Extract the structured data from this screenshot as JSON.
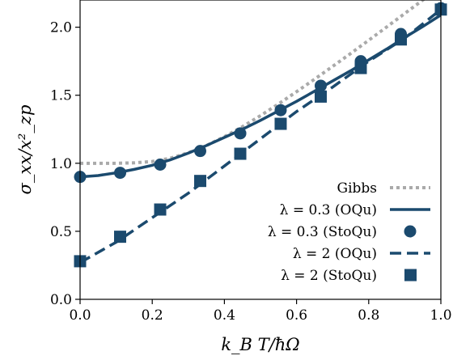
{
  "chart_data": {
    "type": "line",
    "xlabel": "k_B T/ħΩ",
    "ylabel": "σ_xx/x²_zp",
    "xlim": [
      0.0,
      1.0
    ],
    "ylim": [
      0.0,
      2.2
    ],
    "xticks": [
      "0.0",
      "0.2",
      "0.4",
      "0.6",
      "0.8",
      "1.0"
    ],
    "yticks": [
      "0.0",
      "0.5",
      "1.0",
      "1.5",
      "2.0"
    ],
    "grid": false,
    "legend_position": "bottom-right",
    "colors": {
      "dark_blue": "#1b4a6e",
      "gibbs_gray": "#aaaaaa"
    },
    "series": [
      {
        "name": "Gibbs",
        "style": "dotted",
        "color": "#aaaaaa",
        "x": [
          0.0,
          0.05,
          0.1,
          0.15,
          0.2,
          0.25,
          0.3,
          0.35,
          0.4,
          0.45,
          0.5,
          0.55,
          0.6,
          0.65,
          0.7,
          0.75,
          0.8,
          0.85,
          0.9,
          0.95,
          1.0
        ],
        "y": [
          1.0,
          1.0,
          1.0,
          1.003,
          1.013,
          1.037,
          1.077,
          1.13,
          1.195,
          1.269,
          1.35,
          1.436,
          1.526,
          1.618,
          1.712,
          1.807,
          1.904,
          2.002,
          2.101,
          2.2,
          2.3
        ]
      },
      {
        "name": "λ = 0.3 (OQu)",
        "style": "solid",
        "color": "#1b4a6e",
        "x": [
          0.0,
          0.05,
          0.1,
          0.15,
          0.2,
          0.25,
          0.3,
          0.35,
          0.4,
          0.45,
          0.5,
          0.55,
          0.6,
          0.65,
          0.7,
          0.75,
          0.8,
          0.85,
          0.9,
          0.95,
          1.0
        ],
        "y": [
          0.9,
          0.91,
          0.93,
          0.955,
          0.985,
          1.025,
          1.075,
          1.13,
          1.19,
          1.25,
          1.315,
          1.385,
          1.455,
          1.53,
          1.605,
          1.68,
          1.76,
          1.84,
          1.925,
          2.005,
          2.09
        ]
      },
      {
        "name": "λ = 0.3 (StoQu)",
        "style": "marker-circle",
        "color": "#1b4a6e",
        "x": [
          0.0,
          0.111,
          0.222,
          0.333,
          0.444,
          0.556,
          0.667,
          0.778,
          0.889,
          1.0
        ],
        "y": [
          0.9,
          0.93,
          0.99,
          1.09,
          1.22,
          1.39,
          1.57,
          1.75,
          1.95,
          2.14
        ]
      },
      {
        "name": "λ = 2 (OQu)",
        "style": "dashed",
        "color": "#1b4a6e",
        "x": [
          0.0,
          0.1,
          0.2,
          0.3,
          0.4,
          0.5,
          0.6,
          0.7,
          0.8,
          0.9,
          1.0
        ],
        "y": [
          0.27,
          0.42,
          0.6,
          0.78,
          0.98,
          1.18,
          1.38,
          1.56,
          1.75,
          1.92,
          2.13
        ]
      },
      {
        "name": "λ = 2 (StoQu)",
        "style": "marker-square",
        "color": "#1b4a6e",
        "x": [
          0.0,
          0.111,
          0.222,
          0.333,
          0.444,
          0.556,
          0.667,
          0.778,
          0.889,
          1.0
        ],
        "y": [
          0.28,
          0.46,
          0.66,
          0.87,
          1.07,
          1.29,
          1.49,
          1.7,
          1.91,
          2.13
        ]
      }
    ]
  }
}
